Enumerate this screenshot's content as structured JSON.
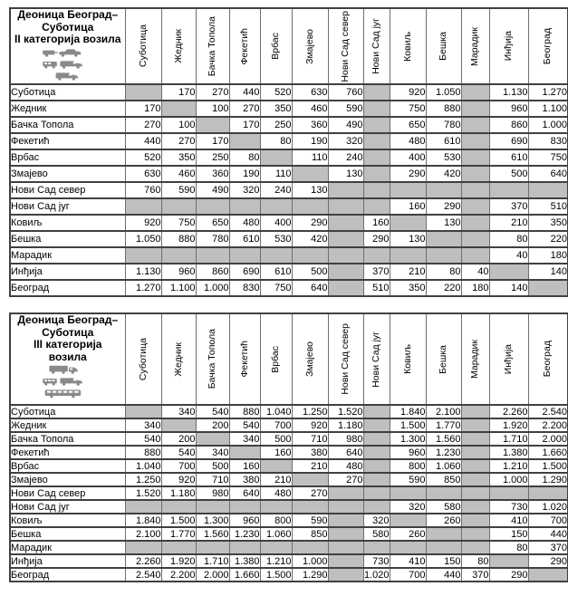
{
  "colors": {
    "shaded_cell": "#bfbfbf",
    "border_dark": "#404040",
    "border_light": "#6e6e6e",
    "icon_gray": "#8a8a8a",
    "text": "#000000",
    "background": "#ffffff"
  },
  "tables": [
    {
      "title_lines": [
        "Деоница Београд–",
        "Суботица",
        "II категорија возила"
      ],
      "icons": [
        "car-with-trailer",
        "pickup-and-van",
        "van"
      ],
      "columns": [
        "Суботица",
        "Жедник",
        "Бачка Топола",
        "Фекетић",
        "Врбас",
        "Змајево",
        "Нови Сад север",
        "Нови Сад југ",
        "Ковиљ",
        "Бешка",
        "Марадик",
        "Инђија",
        "Београд"
      ],
      "rows": [
        {
          "label": "Суботица",
          "values": [
            null,
            "170",
            "270",
            "440",
            "520",
            "630",
            "760",
            null,
            "920",
            "1.050",
            null,
            "1.130",
            "1.270"
          ]
        },
        {
          "label": "Жедник",
          "values": [
            "170",
            null,
            "100",
            "270",
            "350",
            "460",
            "590",
            null,
            "750",
            "880",
            null,
            "960",
            "1.100"
          ]
        },
        {
          "label": "Бачка Топола",
          "values": [
            "270",
            "100",
            null,
            "170",
            "250",
            "360",
            "490",
            null,
            "650",
            "780",
            null,
            "860",
            "1.000"
          ]
        },
        {
          "label": "Фекетић",
          "values": [
            "440",
            "270",
            "170",
            null,
            "80",
            "190",
            "320",
            null,
            "480",
            "610",
            null,
            "690",
            "830"
          ]
        },
        {
          "label": "Врбас",
          "values": [
            "520",
            "350",
            "250",
            "80",
            null,
            "110",
            "240",
            null,
            "400",
            "530",
            null,
            "610",
            "750"
          ]
        },
        {
          "label": "Змајево",
          "values": [
            "630",
            "460",
            "360",
            "190",
            "110",
            null,
            "130",
            null,
            "290",
            "420",
            null,
            "500",
            "640"
          ]
        },
        {
          "label": "Нови Сад север",
          "values": [
            "760",
            "590",
            "490",
            "320",
            "240",
            "130",
            null,
            null,
            null,
            null,
            null,
            null,
            null
          ]
        },
        {
          "label": "Нови Сад југ",
          "values": [
            null,
            null,
            null,
            null,
            null,
            null,
            null,
            null,
            "160",
            "290",
            null,
            "370",
            "510"
          ]
        },
        {
          "label": "Ковиљ",
          "values": [
            "920",
            "750",
            "650",
            "480",
            "400",
            "290",
            null,
            "160",
            null,
            "130",
            null,
            "210",
            "350"
          ]
        },
        {
          "label": "Бешка",
          "values": [
            "1.050",
            "880",
            "780",
            "610",
            "530",
            "420",
            null,
            "290",
            "130",
            null,
            null,
            "80",
            "220"
          ]
        },
        {
          "label": "Марадик",
          "values": [
            null,
            null,
            null,
            null,
            null,
            null,
            null,
            null,
            null,
            null,
            null,
            "40",
            "180"
          ]
        },
        {
          "label": "Инђија",
          "values": [
            "1.130",
            "960",
            "860",
            "690",
            "610",
            "500",
            null,
            "370",
            "210",
            "80",
            "40",
            null,
            "140"
          ]
        },
        {
          "label": "Београд",
          "values": [
            "1.270",
            "1.100",
            "1.000",
            "830",
            "750",
            "640",
            null,
            "510",
            "350",
            "220",
            "180",
            "140",
            null
          ]
        }
      ]
    },
    {
      "title_lines": [
        "Деоница Београд–",
        "Суботица",
        "III категорија",
        "возила"
      ],
      "icons": [
        "truck",
        "van-and-minibus",
        "bus"
      ],
      "columns": [
        "Суботица",
        "Жедник",
        "Бачка Топола",
        "Фекетић",
        "Врбас",
        "Змајево",
        "Нови Сад север",
        "Нови Сад југ",
        "Ковиљ",
        "Бешка",
        "Марадик",
        "Инђија",
        "Београд"
      ],
      "rows": [
        {
          "label": "Суботица",
          "values": [
            null,
            "340",
            "540",
            "880",
            "1.040",
            "1.250",
            "1.520",
            null,
            "1.840",
            "2.100",
            null,
            "2.260",
            "2.540"
          ]
        },
        {
          "label": "Жедник",
          "values": [
            "340",
            null,
            "200",
            "540",
            "700",
            "920",
            "1.180",
            null,
            "1.500",
            "1.770",
            null,
            "1.920",
            "2.200"
          ]
        },
        {
          "label": "Бачка Топола",
          "values": [
            "540",
            "200",
            null,
            "340",
            "500",
            "710",
            "980",
            null,
            "1.300",
            "1.560",
            null,
            "1.710",
            "2.000"
          ]
        },
        {
          "label": "Фекетић",
          "values": [
            "880",
            "540",
            "340",
            null,
            "160",
            "380",
            "640",
            null,
            "960",
            "1.230",
            null,
            "1.380",
            "1.660"
          ]
        },
        {
          "label": "Врбас",
          "values": [
            "1.040",
            "700",
            "500",
            "160",
            null,
            "210",
            "480",
            null,
            "800",
            "1.060",
            null,
            "1.210",
            "1.500"
          ]
        },
        {
          "label": "Змајево",
          "values": [
            "1.250",
            "920",
            "710",
            "380",
            "210",
            null,
            "270",
            null,
            "590",
            "850",
            null,
            "1.000",
            "1.290"
          ]
        },
        {
          "label": "Нови Сад север",
          "values": [
            "1.520",
            "1.180",
            "980",
            "640",
            "480",
            "270",
            null,
            null,
            null,
            null,
            null,
            null,
            null
          ]
        },
        {
          "label": "Нови Сад југ",
          "values": [
            null,
            null,
            null,
            null,
            null,
            null,
            null,
            null,
            "320",
            "580",
            null,
            "730",
            "1.020"
          ]
        },
        {
          "label": "Ковиљ",
          "values": [
            "1.840",
            "1.500",
            "1.300",
            "960",
            "800",
            "590",
            null,
            "320",
            null,
            "260",
            null,
            "410",
            "700"
          ]
        },
        {
          "label": "Бешка",
          "values": [
            "2.100",
            "1.770",
            "1.560",
            "1.230",
            "1.060",
            "850",
            null,
            "580",
            "260",
            null,
            null,
            "150",
            "440"
          ]
        },
        {
          "label": "Марадик",
          "values": [
            null,
            null,
            null,
            null,
            null,
            null,
            null,
            null,
            null,
            null,
            null,
            "80",
            "370"
          ]
        },
        {
          "label": "Инђија",
          "values": [
            "2.260",
            "1.920",
            "1.710",
            "1.380",
            "1.210",
            "1.000",
            null,
            "730",
            "410",
            "150",
            "80",
            null,
            "290"
          ]
        },
        {
          "label": "Београд",
          "values": [
            "2.540",
            "2.200",
            "2.000",
            "1.660",
            "1.500",
            "1.290",
            null,
            "1.020",
            "700",
            "440",
            "370",
            "290",
            null
          ]
        }
      ]
    }
  ]
}
